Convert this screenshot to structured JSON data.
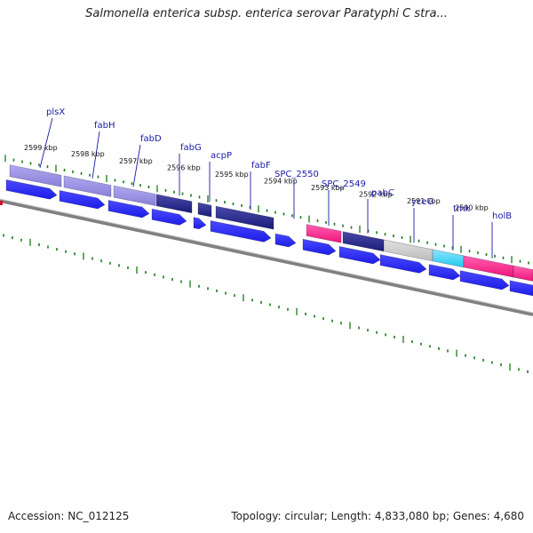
{
  "title": "Salmonella enterica subsp. enterica serovar Paratyphi C stra...",
  "footer": {
    "accession": "Accession: NC_012125",
    "summary": "Topology: circular; Length: 4,833,080 bp; Genes: 4,680"
  },
  "colors": {
    "gene_label": "#1a1aa6",
    "cds_forward": "#1c1ce8",
    "gene_purple": "#8a80d8",
    "gene_navy": "#1a1a7a",
    "gene_pink": "#f0147a",
    "gene_cyan": "#22c8f0",
    "gene_gray": "#bdbdbd",
    "tick_green": "#1a7a1a",
    "backbone": "#808080"
  },
  "kbp_labels": [
    "2599 kbp",
    "2598 kbp",
    "2597 kbp",
    "2596 kbp",
    "2595 kbp",
    "2594 kbp",
    "2593 kbp",
    "2592 kbp",
    "2591 kbp",
    "2590 kbp"
  ],
  "genes": [
    "plsX",
    "fabH",
    "fabD",
    "fabG",
    "acpP",
    "fabF",
    "SPC_2550",
    "SPC_2549",
    "pabC",
    "yceG",
    "tmk",
    "holB"
  ]
}
